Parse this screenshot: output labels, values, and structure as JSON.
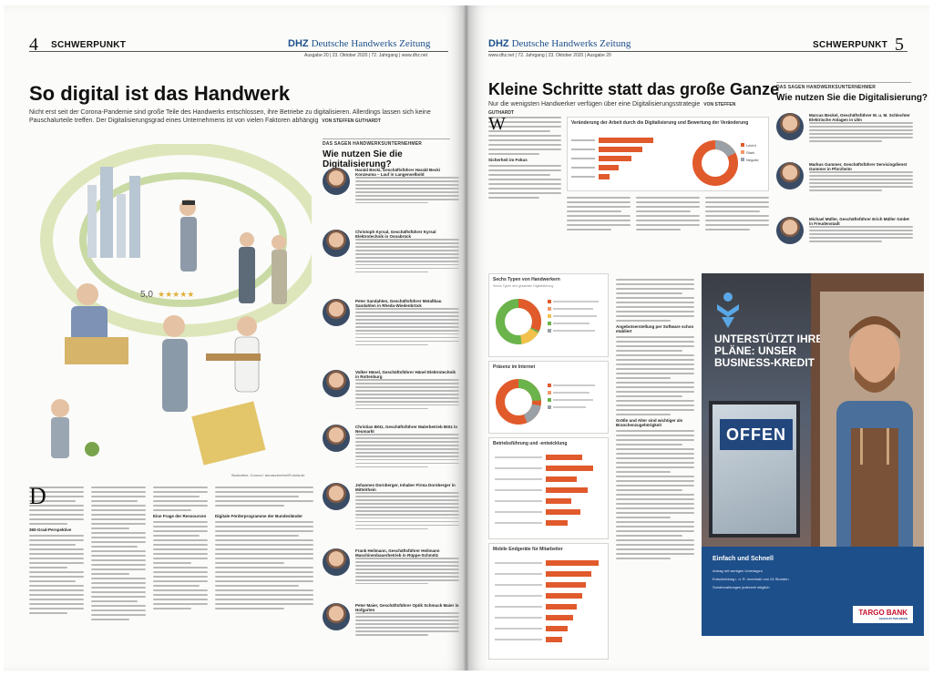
{
  "left_page": {
    "page_number": "4",
    "section": "SCHWERPUNKT",
    "publication": {
      "logo": "DHZ",
      "name": "Deutsche Handwerks Zeitung"
    },
    "meta": "Ausgabe 20 | 23. Oktober 2020 | 72. Jahrgang | www.dhz.net",
    "headline": "So digital ist das Handwerk",
    "teaser": "Nicht erst seit der Corona-Pandemie sind große Teile des Handwerks entschlossen, ihre Betriebe zu digitalisieren. Allerdings lassen sich keine Pauschalurteile treffen. Der Digitalisierungsgrad eines Unternehmens ist von vielen Faktoren abhängig",
    "byline": "VON STEFFEN GUTHARDT",
    "rating_text": "5,0",
    "illustration_caption": "Illustration: Corona / annaschnebel/Fotolia.de",
    "subheads": [
      "360-Grad-Perspektive",
      "Digitale Förderprogramme der Bundesländer",
      "Eine Frage der Ressourcen"
    ],
    "box": {
      "title": "DAS SAGEN HANDWERKSUNTERNEHMER",
      "heading": "Wie nutzen Sie die Digitalisierung?",
      "profiles": [
        {
          "name": "Harald Becki, Geschäftsführer Harald Becki Konzeuma – Lauf in Langenselbold"
        },
        {
          "name": "Christoph Kyrsal, Geschäftsführer Kyrsal Elektrotechnik in Osnabrück"
        },
        {
          "name": "Peter Sandahlen, Geschäftsführer Metallbau Sandahlen in Rheda-Wiedenbrück"
        },
        {
          "name": "Volker Hänel, Geschäftsführer Hänel Elektrotechnik in Rottenburg"
        },
        {
          "name": "Christian Bötz, Geschäftsführer Malerbetrieb Bötz in Neumarkt"
        },
        {
          "name": "Johannes Dornberger, Inhaber Firma Dornberger in Mittelrhein"
        },
        {
          "name": "Frank Heilmann, Geschäftsführer Heilmann Maschinenbauerbetrieb in Rüppe-Schmölz"
        },
        {
          "name": "Peter Maier, Geschäftsführer Optik Schmuck Maier in Hofgarten"
        }
      ]
    }
  },
  "right_page": {
    "page_number": "5",
    "section": "SCHWERPUNKT",
    "publication": {
      "logo": "DHZ",
      "name": "Deutsche Handwerks Zeitung"
    },
    "meta": "www.dhz.net | 72. Jahrgang | 23. Oktober 2020 | Ausgabe 20",
    "headline": "Kleine Schritte statt das große Ganze",
    "teaser": "Nur die wenigsten Handwerker verfügen über eine Digitalisierungsstrategie",
    "byline": "VON STEFFEN GUTHARDT",
    "charts": [
      {
        "title": "Veränderung der Arbeit durch die Digitalisierung und Bewertung der Veränderung",
        "legend": [
          "Leicht",
          "Stark",
          "Negativ"
        ]
      },
      {
        "title": "Sechs Typen von Handwerkern",
        "subtitle": "Sechs Typen den gesamten Digitalisierung"
      },
      {
        "title": "Präsenz im Internet"
      },
      {
        "title": "Betriebsführung und -entwicklung"
      },
      {
        "title": "Mobile Endgeräte für Mitarbeiter"
      }
    ],
    "subheads": [
      "Sicherheit im Fokus",
      "Angebotserstellung per Software schon etabliert",
      "Größe und Alter sind wichtiger als Branchenzugehörigkeit"
    ],
    "box": {
      "title": "DAS SAGEN HANDWERKSUNTERNEHMER",
      "heading": "Wie nutzen Sie die Digitalisierung?",
      "profiles": [
        {
          "name": "Marcus Beckel, Geschäftsführer M. u. M. Schlechter Elektrische Anlagen in Ulm"
        },
        {
          "name": "Markus Gummer, Geschäftsführer Servicingdienst Gummer in Pforzheim"
        },
        {
          "name": "Michael Müller, Geschäftsführer Erich Müller GmbH in Freudenstadt"
        }
      ]
    },
    "ad": {
      "headline": "UNTERSTÜTZT IHRE PLÄNE: UNSER BUSINESS-KREDIT",
      "sign": "OFFEN",
      "box_title": "Einfach und Schnell",
      "bullets": [
        "Antrag mit wenigen Unterlagen",
        "Entscheidung i. d. R. innerhalb von 24 Stunden",
        "Sonderzahlungen jederzeit möglich"
      ],
      "brand": "TARGO BANK",
      "brand_sub": "GESCHÄFTSKUNDEN"
    }
  },
  "colors": {
    "brand_blue": "#1d4f8a",
    "chart_orange": "#e15a2c",
    "chart_green": "#6bb34b",
    "chart_grey": "#9aa0a6"
  }
}
